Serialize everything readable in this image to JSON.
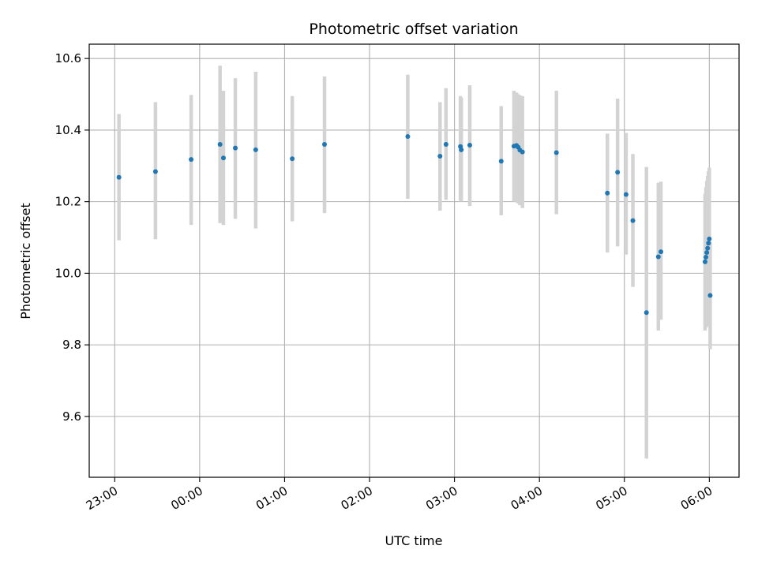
{
  "chart_data": {
    "type": "scatter",
    "title": "Photometric offset variation",
    "xlabel": "UTC time",
    "ylabel": "Photometric offset",
    "x_unit": "hours since midnight UTC (negative = previous day)",
    "xlim": [
      -1.3,
      6.35
    ],
    "ylim": [
      9.43,
      10.64
    ],
    "x_ticks": [
      {
        "value": -1,
        "label": "23:00"
      },
      {
        "value": 0,
        "label": "00:00"
      },
      {
        "value": 1,
        "label": "01:00"
      },
      {
        "value": 2,
        "label": "02:00"
      },
      {
        "value": 3,
        "label": "03:00"
      },
      {
        "value": 4,
        "label": "04:00"
      },
      {
        "value": 5,
        "label": "05:00"
      },
      {
        "value": 6,
        "label": "06:00"
      }
    ],
    "y_ticks": [
      {
        "value": 9.6,
        "label": "9.6"
      },
      {
        "value": 9.8,
        "label": "9.8"
      },
      {
        "value": 10.0,
        "label": "10.0"
      },
      {
        "value": 10.2,
        "label": "10.2"
      },
      {
        "value": 10.4,
        "label": "10.4"
      },
      {
        "value": 10.6,
        "label": "10.6"
      }
    ],
    "grid": true,
    "point_color": "#1f77b4",
    "errorbar_color": "#d3d3d3",
    "points": [
      {
        "x": -0.95,
        "y": 10.268,
        "lo": 10.092,
        "hi": 10.445
      },
      {
        "x": -0.52,
        "y": 10.284,
        "lo": 10.095,
        "hi": 10.478
      },
      {
        "x": -0.1,
        "y": 10.318,
        "lo": 10.135,
        "hi": 10.498
      },
      {
        "x": 0.24,
        "y": 10.36,
        "lo": 10.14,
        "hi": 10.58
      },
      {
        "x": 0.28,
        "y": 10.322,
        "lo": 10.135,
        "hi": 10.51
      },
      {
        "x": 0.42,
        "y": 10.35,
        "lo": 10.152,
        "hi": 10.545
      },
      {
        "x": 0.66,
        "y": 10.345,
        "lo": 10.125,
        "hi": 10.563
      },
      {
        "x": 1.09,
        "y": 10.32,
        "lo": 10.145,
        "hi": 10.495
      },
      {
        "x": 1.47,
        "y": 10.36,
        "lo": 10.168,
        "hi": 10.55
      },
      {
        "x": 2.45,
        "y": 10.382,
        "lo": 10.208,
        "hi": 10.555
      },
      {
        "x": 2.83,
        "y": 10.327,
        "lo": 10.175,
        "hi": 10.478
      },
      {
        "x": 2.9,
        "y": 10.36,
        "lo": 10.205,
        "hi": 10.517
      },
      {
        "x": 3.07,
        "y": 10.354,
        "lo": 10.203,
        "hi": 10.495
      },
      {
        "x": 3.08,
        "y": 10.345,
        "lo": 10.2,
        "hi": 10.49
      },
      {
        "x": 3.18,
        "y": 10.358,
        "lo": 10.188,
        "hi": 10.525
      },
      {
        "x": 3.55,
        "y": 10.313,
        "lo": 10.162,
        "hi": 10.467
      },
      {
        "x": 3.7,
        "y": 10.355,
        "lo": 10.2,
        "hi": 10.51
      },
      {
        "x": 3.73,
        "y": 10.357,
        "lo": 10.198,
        "hi": 10.505
      },
      {
        "x": 3.75,
        "y": 10.352,
        "lo": 10.195,
        "hi": 10.5
      },
      {
        "x": 3.77,
        "y": 10.344,
        "lo": 10.19,
        "hi": 10.497
      },
      {
        "x": 3.8,
        "y": 10.339,
        "lo": 10.182,
        "hi": 10.495
      },
      {
        "x": 4.2,
        "y": 10.337,
        "lo": 10.165,
        "hi": 10.51
      },
      {
        "x": 4.8,
        "y": 10.224,
        "lo": 10.058,
        "hi": 10.39
      },
      {
        "x": 4.92,
        "y": 10.282,
        "lo": 10.075,
        "hi": 10.488
      },
      {
        "x": 5.02,
        "y": 10.22,
        "lo": 10.052,
        "hi": 10.392
      },
      {
        "x": 5.1,
        "y": 10.147,
        "lo": 9.962,
        "hi": 10.333
      },
      {
        "x": 5.26,
        "y": 9.89,
        "lo": 9.482,
        "hi": 10.297
      },
      {
        "x": 5.4,
        "y": 10.046,
        "lo": 9.84,
        "hi": 10.253
      },
      {
        "x": 5.43,
        "y": 10.06,
        "lo": 9.87,
        "hi": 10.256
      },
      {
        "x": 5.95,
        "y": 10.032,
        "lo": 9.84,
        "hi": 10.222
      },
      {
        "x": 5.96,
        "y": 10.045,
        "lo": 9.848,
        "hi": 10.24
      },
      {
        "x": 5.97,
        "y": 10.058,
        "lo": 9.852,
        "hi": 10.258
      },
      {
        "x": 5.98,
        "y": 10.07,
        "lo": 9.86,
        "hi": 10.272
      },
      {
        "x": 5.99,
        "y": 10.084,
        "lo": 9.87,
        "hi": 10.285
      },
      {
        "x": 6.0,
        "y": 10.096,
        "lo": 9.88,
        "hi": 10.295
      },
      {
        "x": 6.01,
        "y": 9.938,
        "lo": 9.788,
        "hi": 10.088
      }
    ]
  }
}
